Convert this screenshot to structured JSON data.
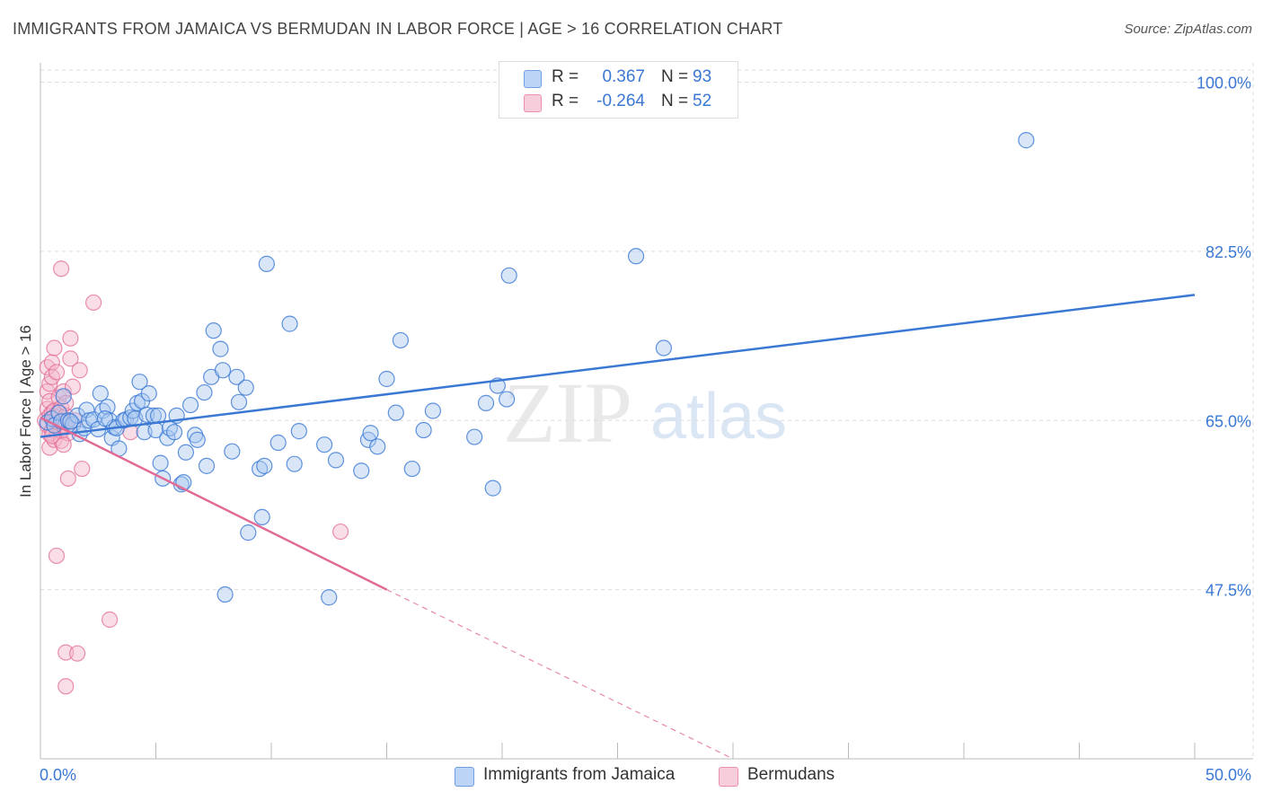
{
  "title": "IMMIGRANTS FROM JAMAICA VS BERMUDAN IN LABOR FORCE | AGE > 16 CORRELATION CHART",
  "source": "Source: ZipAtlas.com",
  "watermark": {
    "zip": "ZIP",
    "atlas": "atlas"
  },
  "legend": {
    "rows": [
      {
        "r_label": "R =",
        "r_value": "0.367",
        "n_label": "N =",
        "n_value": "93"
      },
      {
        "r_label": "R =",
        "r_value": "-0.264",
        "n_label": "N =",
        "n_value": "52"
      }
    ]
  },
  "colors": {
    "blue": "#3a78d4",
    "blue_fill": "#a9c8ef",
    "pink": "#e26b96",
    "pink_fill": "#f4b6ca",
    "axis_text": "#3a78d4",
    "grid": "#dddddd"
  },
  "chart_data": {
    "type": "scatter",
    "title": "IMMIGRANTS FROM JAMAICA VS BERMUDAN IN LABOR FORCE | AGE > 16 CORRELATION CHART",
    "xlabel": "",
    "ylabel": "In Labor Force | Age > 16",
    "xlim": [
      0,
      50
    ],
    "ylim": [
      30,
      102
    ],
    "x_tick_labels": [
      "0.0%",
      "50.0%"
    ],
    "y_ticks": [
      47.5,
      65.0,
      82.5,
      100.0
    ],
    "y_tick_labels": [
      "47.5%",
      "65.0%",
      "82.5%",
      "100.0%"
    ],
    "grid": true,
    "legend_position": "bottom",
    "series": [
      {
        "name": "Immigrants from Jamaica",
        "color": "#3a78d4",
        "trend": {
          "x": [
            0,
            50
          ],
          "y": [
            63.3,
            78.0
          ],
          "r": 0.367
        },
        "points": [
          [
            0.3,
            64.8
          ],
          [
            0.5,
            65.2
          ],
          [
            0.6,
            64.5
          ],
          [
            0.8,
            65.8
          ],
          [
            0.9,
            64.9
          ],
          [
            1.0,
            67.5
          ],
          [
            1.2,
            65.0
          ],
          [
            1.4,
            64.6
          ],
          [
            1.6,
            65.5
          ],
          [
            1.7,
            63.6
          ],
          [
            1.9,
            64.2
          ],
          [
            2.0,
            66.1
          ],
          [
            2.1,
            65.0
          ],
          [
            2.3,
            65.1
          ],
          [
            2.5,
            64.1
          ],
          [
            2.6,
            67.8
          ],
          [
            2.7,
            66.0
          ],
          [
            2.9,
            66.4
          ],
          [
            3.0,
            65.0
          ],
          [
            3.1,
            63.2
          ],
          [
            3.2,
            64.3
          ],
          [
            3.3,
            64.2
          ],
          [
            3.4,
            62.1
          ],
          [
            3.6,
            65.0
          ],
          [
            3.7,
            65.1
          ],
          [
            3.9,
            65.3
          ],
          [
            4.0,
            66.0
          ],
          [
            4.1,
            65.2
          ],
          [
            4.2,
            66.8
          ],
          [
            4.3,
            69.0
          ],
          [
            4.4,
            67.0
          ],
          [
            4.5,
            63.8
          ],
          [
            4.6,
            65.6
          ],
          [
            4.7,
            67.8
          ],
          [
            4.9,
            65.5
          ],
          [
            5.0,
            64.0
          ],
          [
            5.1,
            65.5
          ],
          [
            5.2,
            60.6
          ],
          [
            5.3,
            59.0
          ],
          [
            5.5,
            63.2
          ],
          [
            5.6,
            64.2
          ],
          [
            5.8,
            63.8
          ],
          [
            5.9,
            65.5
          ],
          [
            6.1,
            58.4
          ],
          [
            6.2,
            58.6
          ],
          [
            6.3,
            61.7
          ],
          [
            6.5,
            66.6
          ],
          [
            6.7,
            63.5
          ],
          [
            6.8,
            63.0
          ],
          [
            7.1,
            67.9
          ],
          [
            7.2,
            60.3
          ],
          [
            7.4,
            69.5
          ],
          [
            7.5,
            74.3
          ],
          [
            7.8,
            72.4
          ],
          [
            7.9,
            70.2
          ],
          [
            8.0,
            47.0
          ],
          [
            8.3,
            61.8
          ],
          [
            8.5,
            69.5
          ],
          [
            8.6,
            66.9
          ],
          [
            8.9,
            68.4
          ],
          [
            9.0,
            53.4
          ],
          [
            9.5,
            60.0
          ],
          [
            9.6,
            55.0
          ],
          [
            9.7,
            60.3
          ],
          [
            9.8,
            81.2
          ],
          [
            10.3,
            62.7
          ],
          [
            10.8,
            75.0
          ],
          [
            11.0,
            60.5
          ],
          [
            11.2,
            63.9
          ],
          [
            12.3,
            62.5
          ],
          [
            12.5,
            46.7
          ],
          [
            12.8,
            60.9
          ],
          [
            13.9,
            59.8
          ],
          [
            14.2,
            63.0
          ],
          [
            14.3,
            63.7
          ],
          [
            14.6,
            62.3
          ],
          [
            15.0,
            69.3
          ],
          [
            15.4,
            65.8
          ],
          [
            15.6,
            73.3
          ],
          [
            16.1,
            60.0
          ],
          [
            16.6,
            64.0
          ],
          [
            17.0,
            66.0
          ],
          [
            18.8,
            63.3
          ],
          [
            19.3,
            66.8
          ],
          [
            19.6,
            58.0
          ],
          [
            19.8,
            68.6
          ],
          [
            20.2,
            67.2
          ],
          [
            20.3,
            80.0
          ],
          [
            25.8,
            82.0
          ],
          [
            27.0,
            72.5
          ],
          [
            42.7,
            94.0
          ],
          [
            1.3,
            64.9
          ],
          [
            2.8,
            65.2
          ]
        ]
      },
      {
        "name": "Bermudans",
        "color": "#e26b96",
        "trend": {
          "x": [
            0,
            15
          ],
          "y": [
            65.3,
            47.5
          ],
          "dashed_to": [
            30,
            30.0
          ],
          "r": -0.264
        },
        "points": [
          [
            0.2,
            65.0
          ],
          [
            0.3,
            64.5
          ],
          [
            0.3,
            66.2
          ],
          [
            0.3,
            68.0
          ],
          [
            0.3,
            70.5
          ],
          [
            0.4,
            62.2
          ],
          [
            0.4,
            63.6
          ],
          [
            0.4,
            65.5
          ],
          [
            0.4,
            67.0
          ],
          [
            0.4,
            68.8
          ],
          [
            0.5,
            71.0
          ],
          [
            0.5,
            64.0
          ],
          [
            0.5,
            65.8
          ],
          [
            0.5,
            69.5
          ],
          [
            0.6,
            63.0
          ],
          [
            0.6,
            66.0
          ],
          [
            0.6,
            65.4
          ],
          [
            0.6,
            72.5
          ],
          [
            0.7,
            64.8
          ],
          [
            0.7,
            65.3
          ],
          [
            0.7,
            70.0
          ],
          [
            0.8,
            64.2
          ],
          [
            0.8,
            65.9
          ],
          [
            0.8,
            67.4
          ],
          [
            0.9,
            62.9
          ],
          [
            0.9,
            63.9
          ],
          [
            0.9,
            66.3
          ],
          [
            1.0,
            64.5
          ],
          [
            1.0,
            68.0
          ],
          [
            1.0,
            65.0
          ],
          [
            1.1,
            65.5
          ],
          [
            1.1,
            64.8
          ],
          [
            1.1,
            66.8
          ],
          [
            1.2,
            63.7
          ],
          [
            1.2,
            59.0
          ],
          [
            1.3,
            73.5
          ],
          [
            1.3,
            71.4
          ],
          [
            1.4,
            68.5
          ],
          [
            1.5,
            65.0
          ],
          [
            1.7,
            70.2
          ],
          [
            1.8,
            60.0
          ],
          [
            0.7,
            51.0
          ],
          [
            0.9,
            80.7
          ],
          [
            1.1,
            41.0
          ],
          [
            1.1,
            37.5
          ],
          [
            1.6,
            40.9
          ],
          [
            2.3,
            77.2
          ],
          [
            3.0,
            44.4
          ],
          [
            3.9,
            63.8
          ],
          [
            13.0,
            53.5
          ],
          [
            0.5,
            63.4
          ],
          [
            1.0,
            62.5
          ]
        ]
      }
    ]
  }
}
